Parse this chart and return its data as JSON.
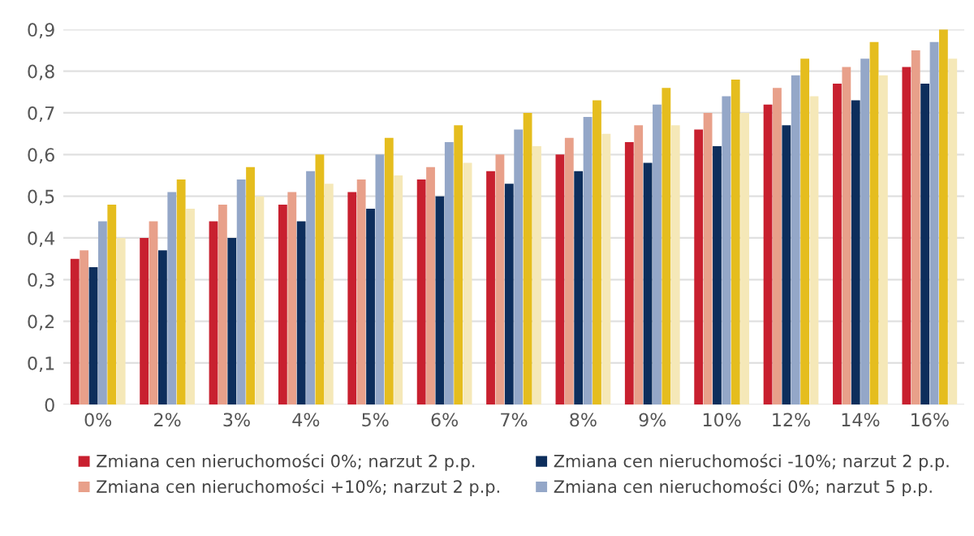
{
  "chart_data": {
    "type": "bar",
    "categories": [
      "0%",
      "2%",
      "3%",
      "4%",
      "5%",
      "6%",
      "7%",
      "8%",
      "9%",
      "10%",
      "12%",
      "14%",
      "16%"
    ],
    "series": [
      {
        "name": "Zmiana cen nieruchomości 0%; narzut 2 p.p.",
        "color": "#c8202f",
        "values": [
          0.35,
          0.4,
          0.44,
          0.48,
          0.51,
          0.54,
          0.56,
          0.6,
          0.63,
          0.66,
          0.72,
          0.77,
          0.81
        ]
      },
      {
        "name": "Zmiana cen nieruchomości +10%; narzut 2 p.p.",
        "color": "#e8a08a",
        "values": [
          0.37,
          0.44,
          0.48,
          0.51,
          0.54,
          0.57,
          0.6,
          0.64,
          0.67,
          0.7,
          0.76,
          0.81,
          0.85
        ]
      },
      {
        "name": "Zmiana cen nieruchomości -10%; narzut 2 p.p.",
        "color": "#0d2e5c",
        "values": [
          0.33,
          0.37,
          0.4,
          0.44,
          0.47,
          0.5,
          0.53,
          0.56,
          0.58,
          0.62,
          0.67,
          0.73,
          0.77
        ]
      },
      {
        "name": "Zmiana cen nieruchomości 0%; narzut 5 p.p.",
        "color": "#94a7c8",
        "values": [
          0.44,
          0.51,
          0.54,
          0.56,
          0.6,
          0.63,
          0.66,
          0.69,
          0.72,
          0.74,
          0.79,
          0.83,
          0.87
        ]
      },
      {
        "color": "#e5bd1e",
        "values": [
          0.48,
          0.54,
          0.57,
          0.6,
          0.64,
          0.67,
          0.7,
          0.73,
          0.76,
          0.78,
          0.83,
          0.87,
          0.9
        ]
      },
      {
        "color": "#f5e8b8",
        "values": [
          0.4,
          0.47,
          0.5,
          0.53,
          0.55,
          0.58,
          0.62,
          0.65,
          0.67,
          0.7,
          0.74,
          0.79,
          0.83
        ]
      }
    ],
    "ylim": [
      0,
      0.9
    ],
    "yticks": [
      0,
      {
        "value": 0.1,
        "label": "0,1"
      },
      {
        "value": 0.2,
        "label": "0,2"
      },
      {
        "value": 0.3,
        "label": "0,3"
      },
      {
        "value": 0.4,
        "label": "0,4"
      },
      {
        "value": 0.5,
        "label": "0,5"
      },
      {
        "value": 0.6,
        "label": "0,6"
      },
      {
        "value": 0.7,
        "label": "0,7"
      },
      {
        "value": 0.8,
        "label": "0,8"
      },
      {
        "value": 0.9,
        "label": "0,9"
      }
    ],
    "grid": "y",
    "legend": "bottom"
  }
}
